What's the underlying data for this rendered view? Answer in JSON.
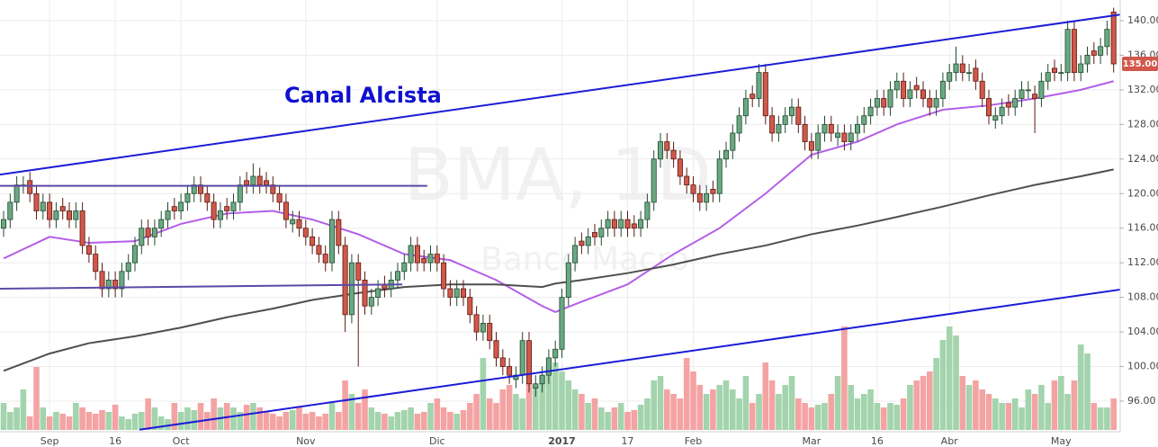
{
  "chart_data": {
    "type": "candlestick",
    "annotation": "Canal Alcista",
    "watermark": [
      "BMA, 1D",
      "Banco Macro"
    ],
    "up_color": "#6aa882",
    "down_color": "#d1584a",
    "volume_up_color": "#a3d4ad",
    "volume_down_color": "#f4a3a3",
    "grid": true,
    "xlim": [
      -0.55,
      170
    ],
    "ylim": [
      92.67,
      142.39
    ],
    "volume_lim": [
      0,
      120
    ],
    "yticks": [
      {
        "value": 96,
        "label": "96.00"
      },
      {
        "value": 100,
        "label": "100.00"
      },
      {
        "value": 104,
        "label": "104.00"
      },
      {
        "value": 108,
        "label": "108.00"
      },
      {
        "value": 112,
        "label": "112.00"
      },
      {
        "value": 116,
        "label": "116.00"
      },
      {
        "value": 120,
        "label": "120.00"
      },
      {
        "value": 124,
        "label": "124.00"
      },
      {
        "value": 128,
        "label": "128.00"
      },
      {
        "value": 132,
        "label": "132.00"
      },
      {
        "value": 136,
        "label": "136.00"
      },
      {
        "value": 140,
        "label": "140.00"
      }
    ],
    "xticks": [
      {
        "value": 7,
        "label": "Sep"
      },
      {
        "value": 17,
        "label": "16"
      },
      {
        "value": 27,
        "label": "Oct"
      },
      {
        "value": 46,
        "label": "Nov"
      },
      {
        "value": 66,
        "label": "Dic"
      },
      {
        "value": 85,
        "label": "2017"
      },
      {
        "value": 95,
        "label": "17"
      },
      {
        "value": 105,
        "label": "Feb"
      },
      {
        "value": 123,
        "label": "Mar"
      },
      {
        "value": 133,
        "label": "16"
      },
      {
        "value": 144,
        "label": "Abr"
      },
      {
        "value": 161,
        "label": "May"
      }
    ],
    "last_price": {
      "value": 135,
      "label": "135.00"
    },
    "open": [
      116,
      117,
      119,
      121,
      121.5,
      120,
      118,
      119,
      117,
      118.5,
      118,
      117,
      118,
      114,
      113,
      111,
      109,
      110,
      109,
      111,
      112,
      114,
      116,
      115,
      116,
      117,
      118.5,
      118,
      119,
      120,
      121,
      120,
      119,
      117,
      118.5,
      118,
      119,
      121.5,
      121,
      122,
      121.5,
      121,
      120,
      119,
      116.5,
      117,
      116,
      115,
      114,
      113,
      112,
      117,
      114,
      106,
      112,
      110,
      107,
      108,
      109.5,
      109,
      110,
      111,
      112,
      114,
      112.5,
      112,
      113,
      112,
      109,
      108,
      109,
      108,
      106,
      104,
      105,
      103,
      101,
      100,
      98.5,
      99,
      103,
      97.5,
      98,
      99,
      101,
      102,
      108,
      112,
      114.5,
      114,
      115.5,
      115,
      116,
      117,
      116,
      117,
      116.5,
      116,
      117,
      119,
      124,
      126,
      125,
      124,
      122,
      121,
      120,
      119,
      120.5,
      120,
      124,
      125,
      127,
      129,
      131.5,
      131,
      134,
      129,
      127,
      128,
      129,
      130,
      128,
      126,
      125,
      127,
      128,
      126.5,
      127,
      126,
      127,
      128,
      129,
      130,
      131,
      130,
      132,
      133,
      131,
      132.5,
      132,
      131,
      130,
      131,
      133,
      134,
      135,
      134,
      134.5,
      133,
      131,
      128.5,
      129,
      130.5,
      130,
      131,
      132,
      131.5,
      131,
      133,
      134.5,
      134,
      134,
      139,
      134,
      135,
      136.5,
      136,
      137,
      141
    ],
    "high": [
      118,
      120,
      122,
      122,
      122.5,
      121,
      120,
      120,
      119,
      119.5,
      119,
      119,
      119,
      115,
      114,
      112,
      111,
      111,
      112,
      113,
      115,
      117,
      117,
      117,
      118,
      119,
      119.5,
      120,
      121,
      122,
      122,
      121,
      120,
      119,
      119.5,
      120,
      122,
      122.5,
      123.5,
      123,
      122.5,
      122,
      121,
      120,
      118,
      118,
      117,
      116,
      115,
      114,
      118,
      118,
      115,
      113,
      113,
      111,
      109,
      110,
      110.5,
      111,
      112,
      113,
      115,
      115,
      113.5,
      114,
      114,
      113,
      110,
      110,
      110,
      109,
      107,
      106,
      106,
      104,
      102,
      101,
      100,
      104,
      104,
      99,
      100,
      102,
      103,
      109,
      113,
      115,
      115.5,
      116,
      116.5,
      117,
      118,
      118,
      118,
      118,
      117.5,
      118,
      120,
      125,
      127,
      127,
      126,
      125,
      123,
      122,
      121,
      121,
      121.5,
      125,
      126,
      128,
      130,
      132,
      132.5,
      135,
      135,
      130,
      129,
      130,
      131,
      131,
      129,
      127,
      128,
      129,
      129,
      128,
      128,
      128,
      129,
      130,
      131,
      132,
      132,
      133,
      134,
      134,
      133,
      133.5,
      133,
      132,
      132,
      134,
      135,
      137,
      136,
      135,
      135.5,
      134,
      132,
      130,
      131,
      131.5,
      132,
      133,
      133,
      132.5,
      134,
      135,
      135.5,
      135,
      140,
      140,
      136,
      137,
      137.5,
      138,
      140,
      141.5
    ],
    "low": [
      115,
      116,
      118,
      120,
      119,
      117,
      117,
      116,
      116,
      117,
      116,
      116,
      113,
      112,
      110,
      108,
      108,
      108,
      108,
      110,
      111,
      113,
      114,
      114,
      115,
      116,
      117,
      117,
      118,
      119,
      119,
      118,
      116,
      116,
      117,
      117,
      118,
      120,
      120,
      120,
      120,
      119,
      118,
      116,
      115.5,
      115,
      114,
      113,
      112,
      111,
      111,
      113,
      104,
      105,
      100,
      106,
      106,
      107,
      108,
      108,
      109,
      110,
      111,
      111,
      111,
      111,
      111,
      108,
      107,
      107,
      107,
      105,
      103,
      103,
      102,
      100,
      99,
      98,
      97.5,
      98,
      97,
      96.5,
      97,
      98,
      100,
      101,
      107,
      111,
      113,
      113,
      114,
      114,
      115,
      115,
      115,
      115,
      115,
      115,
      116,
      118,
      123,
      124,
      123,
      121,
      120,
      119,
      118,
      118,
      119,
      119,
      123,
      124,
      126,
      128,
      130,
      130,
      128,
      126,
      126,
      127,
      128,
      127,
      125,
      124,
      124,
      126,
      126,
      125.5,
      125,
      125,
      126,
      127,
      128,
      129,
      129,
      129,
      131,
      130,
      130,
      131,
      130,
      129,
      129,
      130,
      132,
      133,
      133,
      133,
      132,
      130,
      128,
      127.5,
      128,
      129,
      129,
      130,
      131,
      127,
      130,
      132,
      133,
      133,
      133,
      133,
      133,
      134,
      135,
      135,
      136,
      134
    ],
    "close": [
      117,
      119,
      121,
      121,
      120,
      118,
      119,
      117,
      118,
      118,
      117,
      118,
      114,
      113,
      111,
      109,
      110,
      109,
      111,
      112,
      114,
      116,
      115,
      116,
      117,
      118,
      118,
      119,
      120,
      121,
      120,
      119,
      117,
      118,
      118,
      119,
      121,
      121,
      122,
      121,
      121,
      120,
      119,
      117,
      117,
      116,
      115,
      114,
      113,
      112,
      117,
      114,
      106,
      112,
      110,
      107,
      108,
      109,
      109,
      110,
      111,
      112,
      114,
      112,
      112,
      113,
      112,
      109,
      108,
      109,
      108,
      106,
      104,
      105,
      103,
      101,
      100,
      99,
      99,
      103,
      98,
      98,
      99,
      101,
      102,
      108,
      112,
      114,
      114,
      115,
      115,
      116,
      117,
      116,
      117,
      116,
      116,
      117,
      119,
      124,
      126,
      125,
      124,
      122,
      121,
      120,
      119,
      120,
      120,
      124,
      125,
      127,
      129,
      131,
      131,
      134,
      129,
      127,
      128,
      129,
      130,
      128,
      126,
      125,
      127,
      128,
      127,
      127,
      126,
      127,
      128,
      129,
      130,
      131,
      130,
      132,
      133,
      131,
      132,
      132,
      131,
      130,
      131,
      133,
      134,
      135,
      134,
      134,
      133,
      131,
      129,
      129,
      130,
      130,
      131,
      132,
      132,
      131,
      133,
      134,
      134,
      134,
      139,
      134,
      135,
      136,
      136,
      137,
      139,
      135
    ],
    "volume": [
      30,
      20,
      25,
      45,
      15,
      70,
      25,
      15,
      20,
      18,
      15,
      30,
      25,
      20,
      18,
      22,
      20,
      28,
      15,
      12,
      18,
      20,
      35,
      25,
      15,
      12,
      30,
      20,
      25,
      22,
      30,
      20,
      35,
      25,
      30,
      25,
      20,
      28,
      30,
      25,
      20,
      18,
      15,
      20,
      22,
      25,
      18,
      20,
      15,
      18,
      30,
      20,
      55,
      40,
      30,
      45,
      25,
      20,
      18,
      15,
      20,
      22,
      25,
      18,
      20,
      30,
      35,
      25,
      20,
      18,
      22,
      30,
      40,
      80,
      35,
      30,
      45,
      50,
      40,
      35,
      55,
      50,
      60,
      70,
      75,
      65,
      55,
      45,
      40,
      30,
      35,
      25,
      20,
      25,
      30,
      20,
      22,
      28,
      35,
      55,
      60,
      45,
      40,
      35,
      80,
      65,
      50,
      40,
      45,
      50,
      55,
      45,
      35,
      60,
      30,
      40,
      75,
      55,
      40,
      50,
      60,
      35,
      30,
      25,
      28,
      30,
      40,
      60,
      115,
      50,
      35,
      40,
      45,
      30,
      25,
      30,
      28,
      35,
      50,
      55,
      60,
      65,
      80,
      100,
      115,
      105,
      60,
      50,
      55,
      45,
      40,
      35,
      30,
      30,
      35,
      25,
      45,
      40,
      50,
      30,
      55,
      60,
      40,
      55,
      95,
      85,
      30,
      25,
      25,
      35
    ],
    "moving_averages": [
      {
        "color": "#b45ee8",
        "x": [
          0,
          7,
          13,
          20,
          27,
          34,
          41,
          47,
          54,
          61,
          68,
          75,
          82,
          84,
          88,
          95,
          102,
          109,
          116,
          123,
          130,
          136,
          143,
          150,
          157,
          164,
          169
        ],
        "values": [
          112.5,
          115,
          114.3,
          114.5,
          116.5,
          117.7,
          118,
          117,
          115.3,
          113,
          112.3,
          110,
          107,
          106.3,
          107.5,
          109.5,
          113,
          116,
          120,
          124.5,
          126,
          128,
          129.7,
          130.2,
          131,
          132,
          133
        ]
      },
      {
        "color": "#4f4f4f",
        "x": [
          0,
          7,
          13,
          20,
          27,
          34,
          41,
          47,
          54,
          61,
          68,
          75,
          82,
          84,
          88,
          95,
          102,
          109,
          116,
          123,
          130,
          136,
          143,
          150,
          157,
          164,
          169
        ],
        "values": [
          99.5,
          101.5,
          102.7,
          103.5,
          104.5,
          105.7,
          106.7,
          107.7,
          108.5,
          109.2,
          109.5,
          109.5,
          109.2,
          109.6,
          110,
          110.8,
          111.8,
          113,
          114,
          115.3,
          116.3,
          117.3,
          118.5,
          119.8,
          121,
          122,
          122.8
        ]
      }
    ],
    "trendlines": [
      {
        "color": "#1c1cd6",
        "x": [
          -0.55,
          170
        ],
        "y": [
          122.2,
          140.7
        ]
      },
      {
        "color": "#1c1cd6",
        "x": [
          20.7,
          170
        ],
        "y": [
          92.7,
          108.9
        ]
      },
      {
        "color": "#5b4aa8",
        "x": [
          -0.55,
          64.5
        ],
        "y": [
          120.9,
          120.9
        ]
      },
      {
        "color": "#5b4aa8",
        "x": [
          -0.55,
          60.7
        ],
        "y": [
          109,
          109.5
        ]
      }
    ]
  }
}
